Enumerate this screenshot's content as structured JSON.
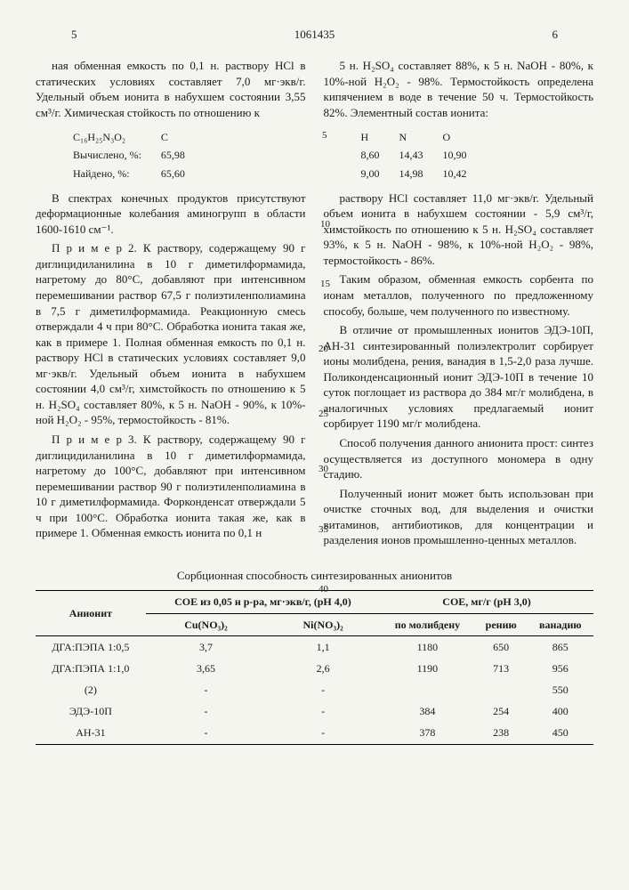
{
  "header": {
    "page_left": "5",
    "doc_num": "1061435",
    "page_right": "6"
  },
  "line_nums": {
    "l5": "5",
    "l10": "10",
    "l15": "15",
    "l20": "20",
    "l25": "25",
    "l30": "30",
    "l35": "35",
    "l40": "40"
  },
  "left": {
    "p1": "ная обменная емкость по 0,1 н. раствору HCl в статических условиях составляет 7,0 мг·экв/г. Удельный объем ионита в набухшем состоянии 3,55 см³/г. Химическая стойкость по отношению к",
    "calc": {
      "formula": "C₁₆H₂₅N₃O₂",
      "c_label": "C",
      "row1_label": "Вычислено, %:",
      "row1_val": "65,98",
      "row2_label": "Найдено, %:",
      "row2_val": "65,60"
    },
    "p2": "В спектрах конечных продуктов присутствуют деформационные колебания аминогрупп в области 1600-1610 см⁻¹.",
    "p3": "П р и м е р 2. К раствору, содержащему 90 г диглицидиланилина в 10 г диметилформамида, нагретому до 80°С, добавляют при интенсивном перемешивании раствор 67,5 г полиэтиленполиамина в 7,5 г диметилформамида. Реакционную смесь отверждали 4 ч при 80°С. Обработка ионита такая же, как в примере 1. Полная обменная емкость по 0,1 н. раствору HCl в статических условиях составляет 9,0 мг·экв/г. Удельный объем ионита в набухшем состоянии 4,0 см³/г, химстойкость по отношению к 5 н. H₂SO₄ составляет 80%, к 5 н. NaOH - 90%, к 10%-ной H₂O₂ - 95%, термостойкость - 81%.",
    "p4": "П р и м е р 3. К раствору, содержащему 90 г диглицидиланилина в 10 г диметилформамида, нагретому до 100°С, добавляют при интенсивном перемешивании раствор 90 г полиэтиленполиамина в 10 г диметилформамида. Форконденсат отверждали 5 ч при 100°С. Обработка ионита такая же, как в примере 1. Обменная емкость ионита по 0,1 н"
  },
  "right": {
    "p1": "5 н. H₂SO₄ составляет 88%, к 5 н. NaOH - 80%, к 10%-ной H₂O₂ - 98%. Термостойкость определена кипячением в воде в течение 50 ч. Термостойкость 82%. Элементный состав ионита:",
    "elem": {
      "h_label": "H",
      "n_label": "N",
      "o_label": "O",
      "r1c1": "8,60",
      "r1c2": "14,43",
      "r1c3": "10,90",
      "r2c1": "9,00",
      "r2c2": "14,98",
      "r2c3": "10,42"
    },
    "p2": "раствору HCl составляет 11,0 мг·экв/г. Удельный объем ионита в набухшем состоянии - 5,9 см³/г, химстойкость по отношению к 5 н. H₂SO₄ составляет 93%, к 5 н. NaOH - 98%, к 10%-ной H₂O₂ - 98%, термостойкость - 86%.",
    "p3": "Таким образом, обменная емкость сорбента по ионам металлов, полученного по предложенному способу, больше, чем полученного по известному.",
    "p4": "В отличие от промышленных ионитов ЭДЭ-10П, АН-31 синтезированный полиэлектролит сорбирует ионы молибдена, рения, ванадия в 1,5-2,0 раза лучше. Поликонденсационный ионит ЭДЭ-10П в течение 10 суток поглощает из раствора до 384 мг/г молибдена, в аналогичных условиях предлагаемый ионит сорбирует 1190 мг/г молибдена.",
    "p5": "Способ получения данного анионита прост: синтез осуществляется из доступного мономера в одну стадию.",
    "p6": "Полученный ионит может быть использован при очистке сточных вод, для выделения и очистки витаминов, антибиотиков, для концентрации и разделения ионов промышленно-ценных металлов."
  },
  "table": {
    "title": "Сорбционная способность синтезированных анионитов",
    "columns": {
      "anionite": "Анионит",
      "soe1": "СОЕ из 0,05 н р-ра, мг·экв/г, (pH 4,0)",
      "soe2": "СОЕ, мг/г (pH 3,0)",
      "cu": "Cu(NO₃)₂",
      "ni": "Ni(NO₃)₂",
      "mo": "по молибдену",
      "re": "рению",
      "va": "ванадию"
    },
    "rows": [
      {
        "a": "ДГА:ПЭПА 1:0,5",
        "cu": "3,7",
        "ni": "1,1",
        "mo": "1180",
        "re": "650",
        "va": "865"
      },
      {
        "a": "ДГА:ПЭПА 1:1,0",
        "cu": "3,65",
        "ni": "2,6",
        "mo": "1190",
        "re": "713",
        "va": "956"
      },
      {
        "a": "(2)",
        "cu": "-",
        "ni": "-",
        "mo": "",
        "re": "",
        "va": "550"
      },
      {
        "a": "ЭДЭ-10П",
        "cu": "-",
        "ni": "-",
        "mo": "384",
        "re": "254",
        "va": "400"
      },
      {
        "a": "АН-31",
        "cu": "-",
        "ni": "-",
        "mo": "378",
        "re": "238",
        "va": "450"
      }
    ]
  }
}
